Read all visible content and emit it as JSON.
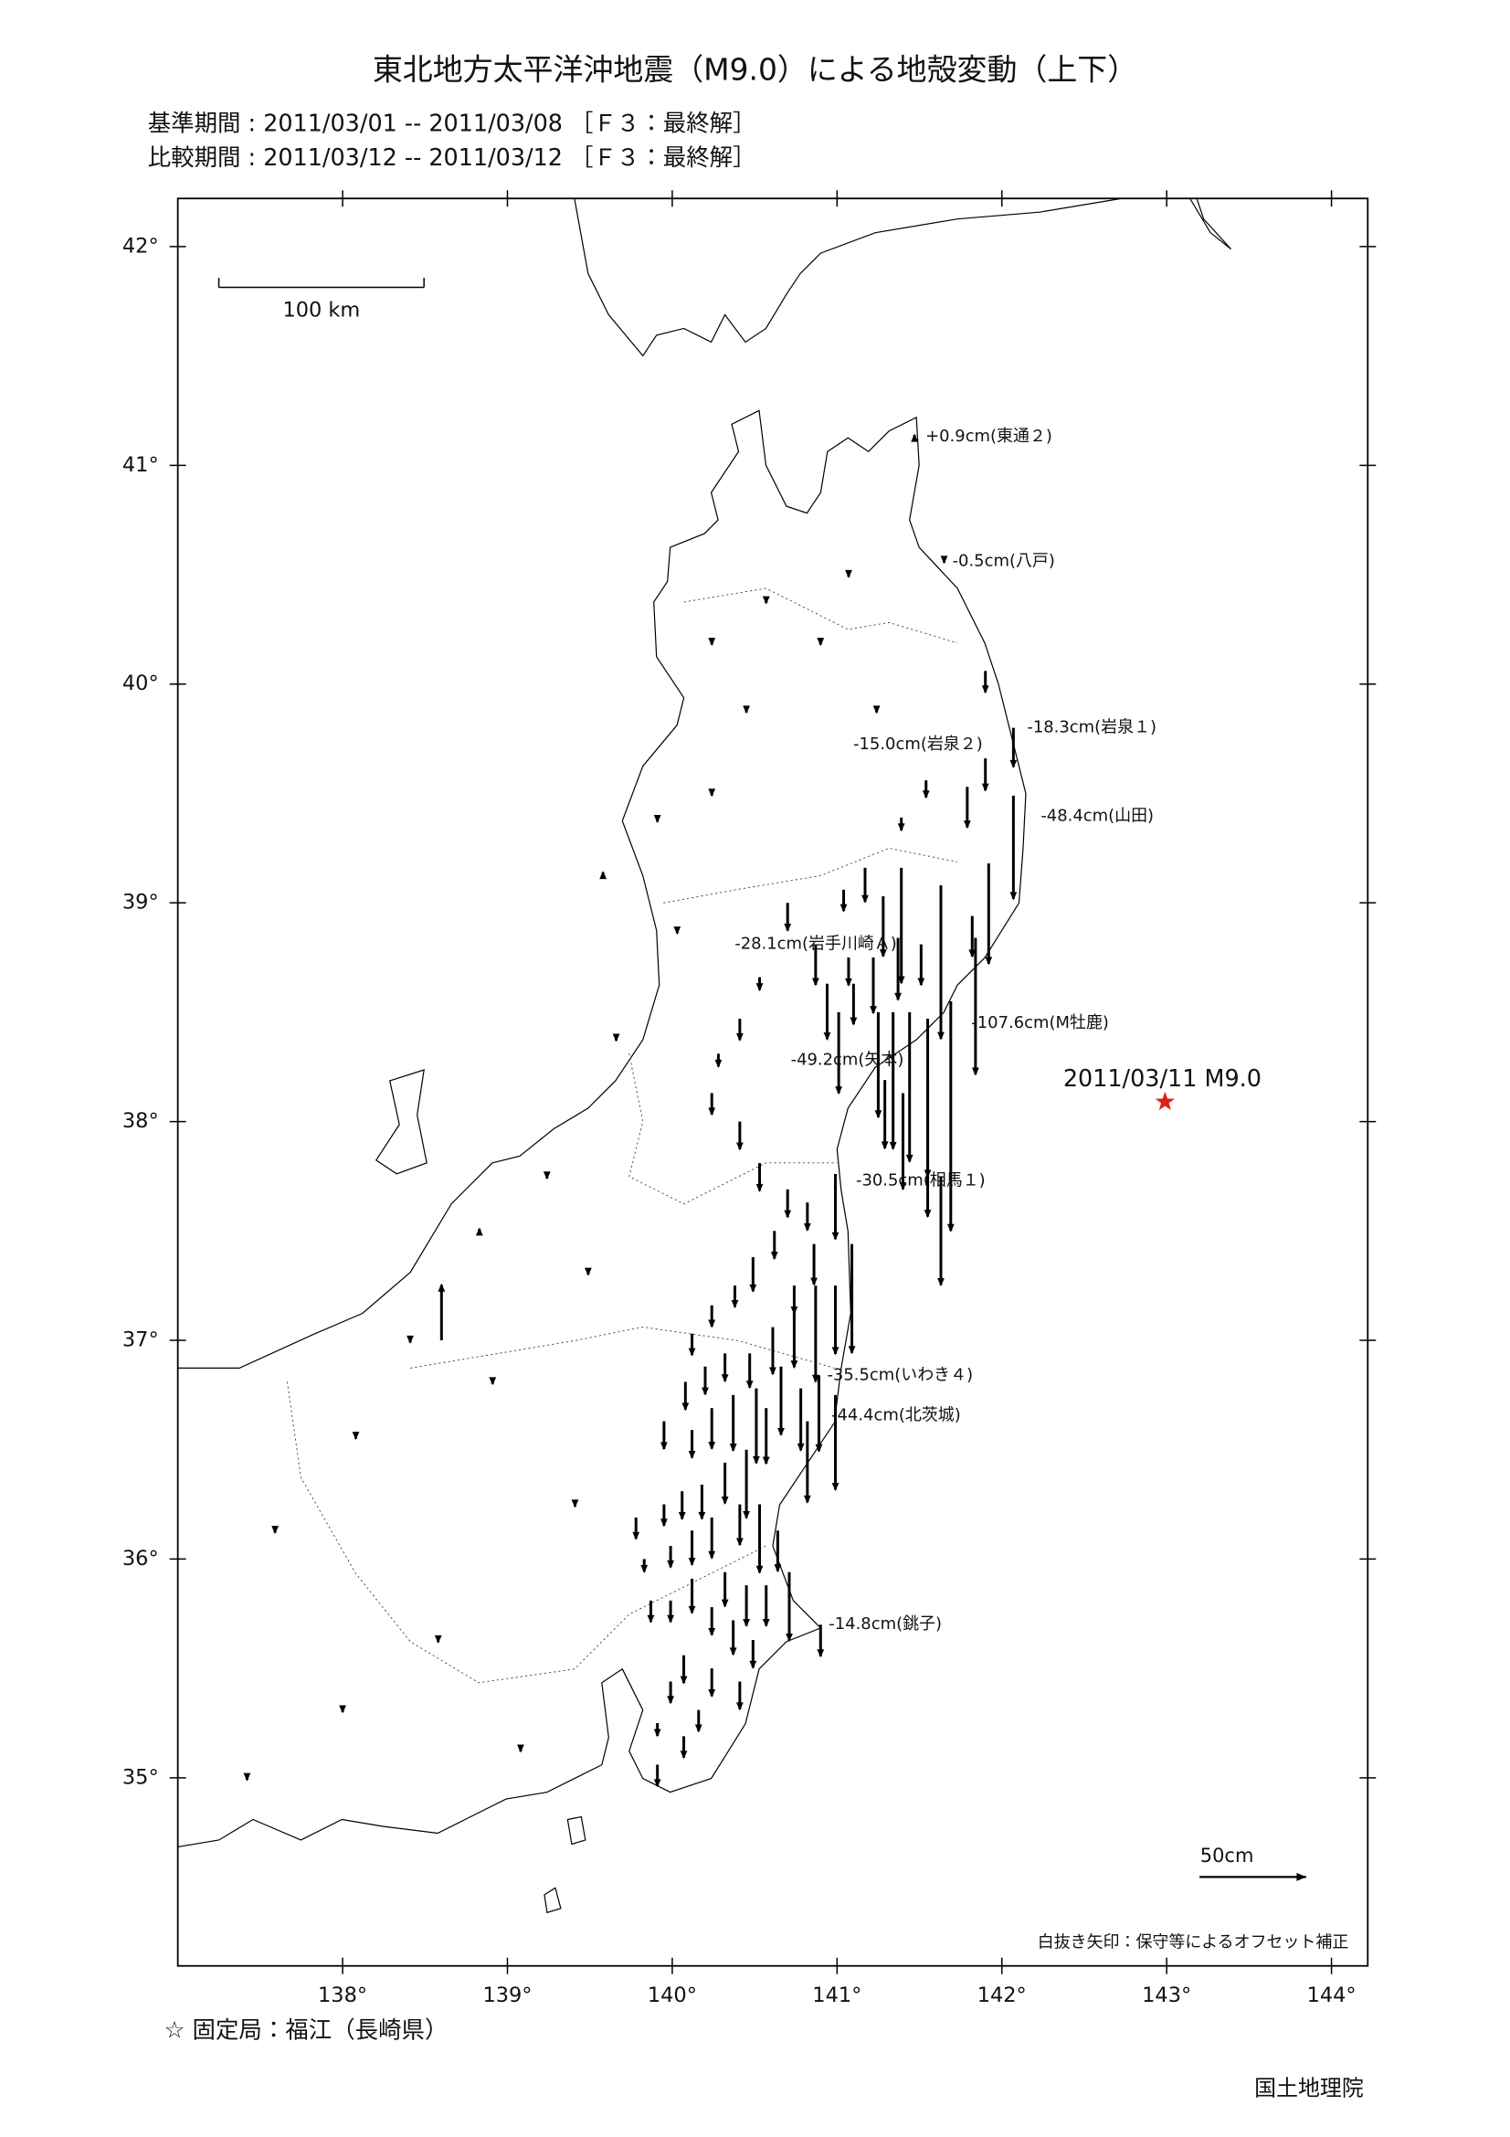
{
  "header": {
    "title": "東北地方太平洋沖地震（M9.0）による地殻変動（上下）",
    "base_period": "基準期間 : 2011/03/01 -- 2011/03/08 ［Ｆ３：最終解］",
    "compare_period": "比較期間 : 2011/03/12 -- 2011/03/12 ［Ｆ３：最終解］"
  },
  "map": {
    "xlim": [
      137.0,
      144.22
    ],
    "ylim": [
      34.14,
      42.22
    ],
    "xticks": [
      {
        "value": 138,
        "label": "138°"
      },
      {
        "value": 139,
        "label": "139°"
      },
      {
        "value": 140,
        "label": "140°"
      },
      {
        "value": 141,
        "label": "141°"
      },
      {
        "value": 142,
        "label": "142°"
      },
      {
        "value": 143,
        "label": "143°"
      },
      {
        "value": 144,
        "label": "144°"
      }
    ],
    "yticks": [
      {
        "value": 35,
        "label": "35°"
      },
      {
        "value": 36,
        "label": "36°"
      },
      {
        "value": 37,
        "label": "37°"
      },
      {
        "value": 38,
        "label": "38°"
      },
      {
        "value": 39,
        "label": "39°"
      },
      {
        "value": 40,
        "label": "40°"
      },
      {
        "value": 41,
        "label": "41°"
      },
      {
        "value": 42,
        "label": "42°"
      }
    ],
    "scale_bar": "100 km",
    "reference_arrow": {
      "label": "50cm",
      "value": 50
    },
    "epicenter": {
      "label": "2011/03/11 M9.0",
      "lon": 142.99,
      "lat": 38.09
    },
    "labeled_stations": [
      {
        "label": "+0.9cm(東通２)",
        "value": 0.9,
        "lon": 141.47,
        "lat": 41.13
      },
      {
        "label": "-0.5cm(八戸)",
        "value": -0.5,
        "lon": 141.65,
        "lat": 40.56
      },
      {
        "label": "-18.3cm(岩泉１)",
        "value": -18.3,
        "lon": 142.07,
        "lat": 39.8
      },
      {
        "label": "-15.0cm(岩泉２)",
        "value": -15.0,
        "lon": 141.9,
        "lat": 39.66
      },
      {
        "label": "-48.4cm(山田)",
        "value": -48.4,
        "lon": 142.07,
        "lat": 39.49
      },
      {
        "label": "-28.1cm(岩手川崎Ａ)",
        "value": -28.1,
        "lon": 141.28,
        "lat": 39.03
      },
      {
        "label": "-49.2cm(矢本)",
        "value": -49.2,
        "lon": 141.25,
        "lat": 38.5
      },
      {
        "label": "-107.6cm(M牡鹿)",
        "value": -107.6,
        "lon": 141.69,
        "lat": 38.55
      },
      {
        "label": "-30.5cm(相馬１)",
        "value": -30.5,
        "lon": 140.99,
        "lat": 37.76
      },
      {
        "label": "-35.5cm(いわき４)",
        "value": -35.5,
        "lon": 140.89,
        "lat": 36.84
      },
      {
        "label": "-44.4cm(北茨城)",
        "value": -44.4,
        "lon": 140.99,
        "lat": 36.75
      },
      {
        "label": "-14.8cm(銚子)",
        "value": -14.8,
        "lon": 140.9,
        "lat": 35.7
      }
    ],
    "arrows": [
      {
        "lon": 141.9,
        "lat": 40.06,
        "value": -10
      },
      {
        "lon": 141.54,
        "lat": 39.56,
        "value": -8
      },
      {
        "lon": 141.39,
        "lat": 39.39,
        "value": -6
      },
      {
        "lon": 141.79,
        "lat": 39.53,
        "value": -19
      },
      {
        "lon": 141.92,
        "lat": 39.18,
        "value": -47
      },
      {
        "lon": 141.63,
        "lat": 39.08,
        "value": -72
      },
      {
        "lon": 141.39,
        "lat": 39.16,
        "value": -54
      },
      {
        "lon": 141.17,
        "lat": 39.16,
        "value": -16
      },
      {
        "lon": 141.04,
        "lat": 39.06,
        "value": -10
      },
      {
        "lon": 140.7,
        "lat": 39.0,
        "value": -13
      },
      {
        "lon": 140.87,
        "lat": 38.81,
        "value": -19
      },
      {
        "lon": 141.07,
        "lat": 38.75,
        "value": -13
      },
      {
        "lon": 141.22,
        "lat": 38.75,
        "value": -26
      },
      {
        "lon": 141.37,
        "lat": 38.84,
        "value": -29
      },
      {
        "lon": 141.51,
        "lat": 38.81,
        "value": -19
      },
      {
        "lon": 141.82,
        "lat": 38.94,
        "value": -19
      },
      {
        "lon": 140.94,
        "lat": 38.63,
        "value": -26
      },
      {
        "lon": 141.1,
        "lat": 38.63,
        "value": -19
      },
      {
        "lon": 141.01,
        "lat": 38.5,
        "value": -38
      },
      {
        "lon": 141.34,
        "lat": 38.5,
        "value": -64
      },
      {
        "lon": 141.44,
        "lat": 38.5,
        "value": -70
      },
      {
        "lon": 141.55,
        "lat": 38.47,
        "value": -74
      },
      {
        "lon": 141.84,
        "lat": 38.84,
        "value": -64
      },
      {
        "lon": 141.29,
        "lat": 38.19,
        "value": -32
      },
      {
        "lon": 141.4,
        "lat": 38.13,
        "value": -45
      },
      {
        "lon": 141.55,
        "lat": 38.19,
        "value": -64
      },
      {
        "lon": 141.63,
        "lat": 37.75,
        "value": -51
      },
      {
        "lon": 140.53,
        "lat": 38.66,
        "value": -6
      },
      {
        "lon": 140.41,
        "lat": 38.47,
        "value": -10
      },
      {
        "lon": 140.28,
        "lat": 38.31,
        "value": -6
      },
      {
        "lon": 140.24,
        "lat": 38.13,
        "value": -10
      },
      {
        "lon": 140.41,
        "lat": 38.0,
        "value": -13
      },
      {
        "lon": 140.53,
        "lat": 37.81,
        "value": -13
      },
      {
        "lon": 140.7,
        "lat": 37.69,
        "value": -13
      },
      {
        "lon": 140.82,
        "lat": 37.63,
        "value": -13
      },
      {
        "lon": 140.86,
        "lat": 37.44,
        "value": -19
      },
      {
        "lon": 140.74,
        "lat": 37.25,
        "value": -13
      },
      {
        "lon": 140.62,
        "lat": 37.5,
        "value": -13
      },
      {
        "lon": 140.49,
        "lat": 37.38,
        "value": -16
      },
      {
        "lon": 140.38,
        "lat": 37.25,
        "value": -10
      },
      {
        "lon": 140.24,
        "lat": 37.16,
        "value": -10
      },
      {
        "lon": 140.12,
        "lat": 37.03,
        "value": -10
      },
      {
        "lon": 141.09,
        "lat": 37.44,
        "value": -51
      },
      {
        "lon": 140.99,
        "lat": 37.25,
        "value": -32
      },
      {
        "lon": 140.87,
        "lat": 37.25,
        "value": -45
      },
      {
        "lon": 140.74,
        "lat": 37.13,
        "value": -26
      },
      {
        "lon": 140.61,
        "lat": 37.06,
        "value": -22
      },
      {
        "lon": 140.47,
        "lat": 36.94,
        "value": -16
      },
      {
        "lon": 140.32,
        "lat": 36.94,
        "value": -13
      },
      {
        "lon": 140.2,
        "lat": 36.88,
        "value": -13
      },
      {
        "lon": 140.08,
        "lat": 36.81,
        "value": -13
      },
      {
        "lon": 139.95,
        "lat": 36.63,
        "value": -13
      },
      {
        "lon": 140.12,
        "lat": 36.59,
        "value": -13
      },
      {
        "lon": 140.24,
        "lat": 36.69,
        "value": -19
      },
      {
        "lon": 140.37,
        "lat": 36.75,
        "value": -26
      },
      {
        "lon": 140.51,
        "lat": 36.78,
        "value": -35
      },
      {
        "lon": 140.66,
        "lat": 36.88,
        "value": -32
      },
      {
        "lon": 140.78,
        "lat": 36.78,
        "value": -29
      },
      {
        "lon": 140.82,
        "lat": 36.63,
        "value": -38
      },
      {
        "lon": 140.57,
        "lat": 36.69,
        "value": -26
      },
      {
        "lon": 140.45,
        "lat": 36.5,
        "value": -32
      },
      {
        "lon": 140.32,
        "lat": 36.44,
        "value": -19
      },
      {
        "lon": 140.18,
        "lat": 36.34,
        "value": -16
      },
      {
        "lon": 140.06,
        "lat": 36.31,
        "value": -13
      },
      {
        "lon": 139.95,
        "lat": 36.25,
        "value": -10
      },
      {
        "lon": 139.78,
        "lat": 36.19,
        "value": -10
      },
      {
        "lon": 139.83,
        "lat": 36.0,
        "value": -6
      },
      {
        "lon": 139.99,
        "lat": 36.06,
        "value": -10
      },
      {
        "lon": 140.12,
        "lat": 36.13,
        "value": -16
      },
      {
        "lon": 140.24,
        "lat": 36.19,
        "value": -19
      },
      {
        "lon": 140.41,
        "lat": 36.25,
        "value": -19
      },
      {
        "lon": 140.53,
        "lat": 36.25,
        "value": -32
      },
      {
        "lon": 140.64,
        "lat": 36.13,
        "value": -19
      },
      {
        "lon": 140.71,
        "lat": 35.94,
        "value": -32
      },
      {
        "lon": 140.57,
        "lat": 35.88,
        "value": -19
      },
      {
        "lon": 140.45,
        "lat": 35.88,
        "value": -19
      },
      {
        "lon": 140.32,
        "lat": 35.94,
        "value": -16
      },
      {
        "lon": 140.24,
        "lat": 35.78,
        "value": -13
      },
      {
        "lon": 140.12,
        "lat": 35.91,
        "value": -16
      },
      {
        "lon": 139.99,
        "lat": 35.81,
        "value": -10
      },
      {
        "lon": 139.87,
        "lat": 35.81,
        "value": -10
      },
      {
        "lon": 140.37,
        "lat": 35.72,
        "value": -16
      },
      {
        "lon": 140.49,
        "lat": 35.63,
        "value": -13
      },
      {
        "lon": 140.24,
        "lat": 35.5,
        "value": -13
      },
      {
        "lon": 140.07,
        "lat": 35.56,
        "value": -13
      },
      {
        "lon": 139.99,
        "lat": 35.44,
        "value": -10
      },
      {
        "lon": 140.16,
        "lat": 35.31,
        "value": -10
      },
      {
        "lon": 140.41,
        "lat": 35.44,
        "value": -13
      },
      {
        "lon": 139.91,
        "lat": 35.25,
        "value": -6
      },
      {
        "lon": 140.07,
        "lat": 35.19,
        "value": -10
      },
      {
        "lon": 139.91,
        "lat": 35.06,
        "value": -10
      },
      {
        "lon": 138.6,
        "lat": 37.0,
        "value": 26
      },
      {
        "lon": 140.24,
        "lat": 40.19,
        "value": -1
      },
      {
        "lon": 140.45,
        "lat": 39.88,
        "value": -1
      },
      {
        "lon": 139.91,
        "lat": 39.38,
        "value": -1
      },
      {
        "lon": 140.24,
        "lat": 39.5,
        "value": -1
      },
      {
        "lon": 139.58,
        "lat": 39.13,
        "value": 1
      },
      {
        "lon": 140.03,
        "lat": 38.88,
        "value": -2
      },
      {
        "lon": 139.66,
        "lat": 38.38,
        "value": -1
      },
      {
        "lon": 139.24,
        "lat": 37.75,
        "value": -1
      },
      {
        "lon": 138.83,
        "lat": 37.5,
        "value": 1
      },
      {
        "lon": 138.41,
        "lat": 37.0,
        "value": -1
      },
      {
        "lon": 138.08,
        "lat": 36.56,
        "value": -1
      },
      {
        "lon": 137.59,
        "lat": 36.13,
        "value": -1
      },
      {
        "lon": 138.58,
        "lat": 35.63,
        "value": -1
      },
      {
        "lon": 139.08,
        "lat": 35.13,
        "value": -1
      },
      {
        "lon": 139.41,
        "lat": 36.25,
        "value": -1
      },
      {
        "lon": 138.91,
        "lat": 36.81,
        "value": -1
      },
      {
        "lon": 139.49,
        "lat": 37.31,
        "value": -1
      },
      {
        "lon": 138.0,
        "lat": 35.31,
        "value": -1
      },
      {
        "lon": 137.42,
        "lat": 35.0,
        "value": -1
      },
      {
        "lon": 141.07,
        "lat": 40.5,
        "value": -1
      },
      {
        "lon": 140.57,
        "lat": 40.38,
        "value": -1
      },
      {
        "lon": 140.9,
        "lat": 40.19,
        "value": -1
      },
      {
        "lon": 141.24,
        "lat": 39.88,
        "value": -1
      }
    ],
    "offset_note": "白抜き矢印：保守等によるオフセット補正"
  },
  "footer": {
    "fixed_station": "☆ 固定局：福江（長崎県）",
    "agency": "国土地理院"
  }
}
